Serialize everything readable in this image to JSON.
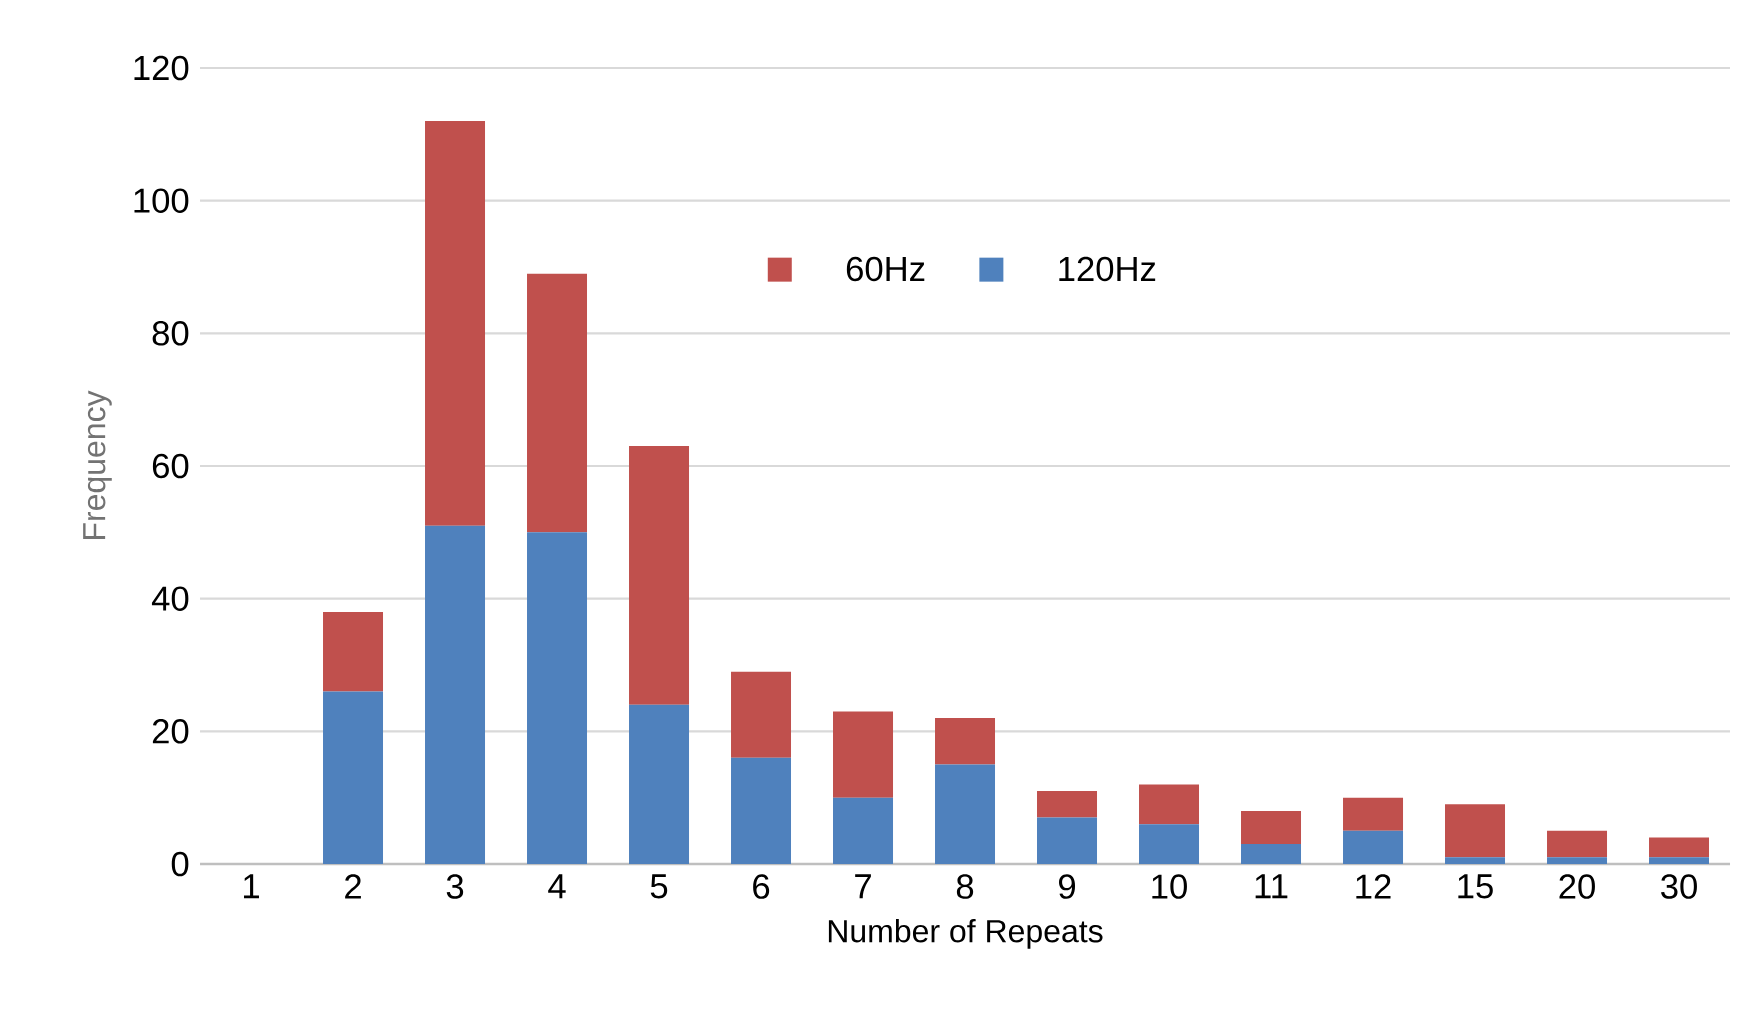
{
  "chart_data": {
    "type": "bar",
    "stacked": true,
    "xlabel": "Number of Repeats",
    "ylabel": "Frequency",
    "categories": [
      "1",
      "2",
      "3",
      "4",
      "5",
      "6",
      "7",
      "8",
      "9",
      "10",
      "11",
      "12",
      "15",
      "20",
      "30"
    ],
    "series": [
      {
        "name": "120Hz",
        "color": "#4f81bd",
        "values": [
          0,
          26,
          51,
          50,
          24,
          16,
          10,
          15,
          7,
          6,
          3,
          5,
          1,
          1,
          1
        ]
      },
      {
        "name": "60Hz",
        "color": "#c0504d",
        "values": [
          0,
          12,
          61,
          39,
          39,
          13,
          13,
          7,
          4,
          6,
          5,
          5,
          8,
          4,
          3
        ]
      }
    ],
    "ylim": [
      0,
      120
    ],
    "yticks": [
      0,
      20,
      40,
      60,
      80,
      100,
      120
    ],
    "grid": "y",
    "legend": "top"
  }
}
